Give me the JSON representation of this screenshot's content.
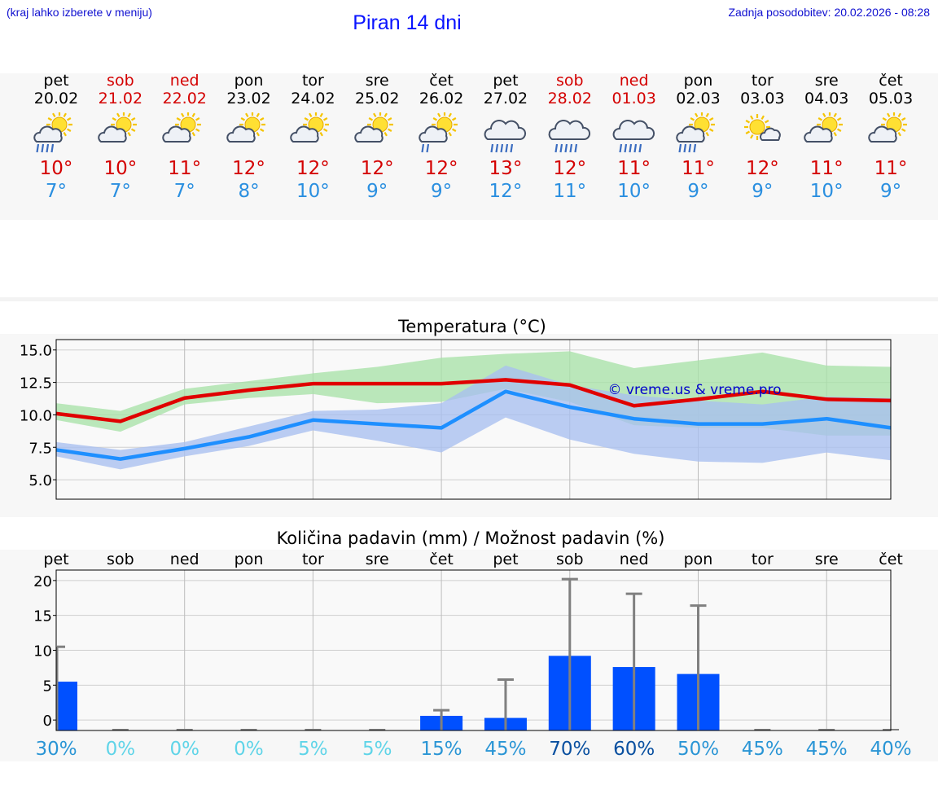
{
  "header": {
    "hint": "(kraj lahko izberete v meniju)",
    "title": "Piran 14 dni",
    "updated": "Zadnja posodobitev: 20.02.2026 - 08:28"
  },
  "colors": {
    "max_temp": "#e00000",
    "min_temp": "#1e8fff",
    "max_band": "#a8e2a8",
    "min_band": "#a8bff0",
    "bar": "#0050ff",
    "error_bar": "#808080",
    "watermark": "#0000cc"
  },
  "days": [
    {
      "name": "pet",
      "date": "20.02",
      "weekend": false,
      "icon": "sun-cloud-rain-icon",
      "tmax": "10°",
      "tmin": "7°"
    },
    {
      "name": "sob",
      "date": "21.02",
      "weekend": true,
      "icon": "sun-cloud-icon",
      "tmax": "10°",
      "tmin": "7°"
    },
    {
      "name": "ned",
      "date": "22.02",
      "weekend": true,
      "icon": "sun-cloud-icon",
      "tmax": "11°",
      "tmin": "7°"
    },
    {
      "name": "pon",
      "date": "23.02",
      "weekend": false,
      "icon": "sun-cloud-icon",
      "tmax": "12°",
      "tmin": "8°"
    },
    {
      "name": "tor",
      "date": "24.02",
      "weekend": false,
      "icon": "sun-cloud-icon",
      "tmax": "12°",
      "tmin": "10°"
    },
    {
      "name": "sre",
      "date": "25.02",
      "weekend": false,
      "icon": "sun-cloud-icon",
      "tmax": "12°",
      "tmin": "9°"
    },
    {
      "name": "čet",
      "date": "26.02",
      "weekend": false,
      "icon": "sun-cloud-light-rain-icon",
      "tmax": "12°",
      "tmin": "9°"
    },
    {
      "name": "pet",
      "date": "27.02",
      "weekend": false,
      "icon": "cloud-rain-icon",
      "tmax": "13°",
      "tmin": "12°"
    },
    {
      "name": "sob",
      "date": "28.02",
      "weekend": true,
      "icon": "cloud-rain-icon",
      "tmax": "12°",
      "tmin": "11°"
    },
    {
      "name": "ned",
      "date": "01.03",
      "weekend": true,
      "icon": "cloud-rain-icon",
      "tmax": "11°",
      "tmin": "10°"
    },
    {
      "name": "pon",
      "date": "02.03",
      "weekend": false,
      "icon": "sun-cloud-rain-icon",
      "tmax": "11°",
      "tmin": "9°"
    },
    {
      "name": "tor",
      "date": "03.03",
      "weekend": false,
      "icon": "sun-small-cloud-icon",
      "tmax": "12°",
      "tmin": "9°"
    },
    {
      "name": "sre",
      "date": "04.03",
      "weekend": false,
      "icon": "sun-cloud-icon",
      "tmax": "11°",
      "tmin": "10°"
    },
    {
      "name": "čet",
      "date": "05.03",
      "weekend": false,
      "icon": "sun-cloud-icon",
      "tmax": "11°",
      "tmin": "9°"
    }
  ],
  "chart_data": [
    {
      "type": "line",
      "title": "Temperatura (°C)",
      "xlabel": "",
      "ylabel": "",
      "x": [
        1,
        2,
        3,
        4,
        5,
        6,
        7,
        8,
        9,
        10,
        11,
        12,
        13,
        14
      ],
      "ylim": [
        3.5,
        15.8
      ],
      "yticks": [
        "5.0",
        "7.5",
        "10.0",
        "12.5",
        "15.0"
      ],
      "ytick_values": [
        5.0,
        7.5,
        10.0,
        12.5,
        15.0
      ],
      "watermark": "© vreme.us & vreme.pro",
      "grid": true,
      "series": [
        {
          "name": "max",
          "color": "#e00000",
          "values": [
            10.1,
            9.5,
            11.3,
            11.9,
            12.4,
            12.4,
            12.4,
            12.7,
            12.3,
            10.7,
            11.2,
            11.8,
            11.2,
            11.1
          ],
          "band_low": [
            9.6,
            8.7,
            10.8,
            11.3,
            11.6,
            10.9,
            11.0,
            12.0,
            11.0,
            9.2,
            9.0,
            9.0,
            8.4,
            8.4
          ],
          "band_high": [
            10.9,
            10.3,
            12.0,
            12.6,
            13.2,
            13.7,
            14.4,
            14.7,
            14.9,
            13.6,
            14.2,
            14.8,
            13.8,
            13.7
          ]
        },
        {
          "name": "min",
          "color": "#1e8fff",
          "values": [
            7.3,
            6.6,
            7.4,
            8.3,
            9.6,
            9.3,
            9.0,
            11.8,
            10.6,
            9.7,
            9.3,
            9.3,
            9.7,
            9.0
          ],
          "band_low": [
            6.8,
            5.8,
            6.8,
            7.6,
            8.8,
            8.0,
            7.1,
            9.8,
            8.1,
            7.0,
            6.4,
            6.3,
            7.1,
            6.5
          ],
          "band_high": [
            7.9,
            7.3,
            7.9,
            9.1,
            10.3,
            10.4,
            10.9,
            13.8,
            12.3,
            11.5,
            11.1,
            10.8,
            11.4,
            11.3
          ]
        }
      ]
    },
    {
      "type": "bar",
      "title": "Količina padavin (mm) / Možnost padavin (%)",
      "categories": [
        "pet",
        "sob",
        "ned",
        "pon",
        "tor",
        "sre",
        "čet",
        "pet",
        "sob",
        "ned",
        "pon",
        "tor",
        "sre",
        "čet"
      ],
      "ylim": [
        -1.5,
        21.5
      ],
      "yticks": [
        "0",
        "5",
        "10",
        "15",
        "20"
      ],
      "ytick_values": [
        0,
        5,
        10,
        15,
        20
      ],
      "values": [
        5.5,
        0,
        0,
        0,
        0,
        0,
        0.6,
        0.3,
        9.2,
        7.6,
        6.6,
        0,
        0,
        0
      ],
      "error_max": [
        10.5,
        0,
        0,
        0,
        0,
        0,
        1.4,
        5.8,
        20.2,
        18.1,
        16.4,
        0,
        0,
        0
      ],
      "probability": [
        "30%",
        "0%",
        "0%",
        "0%",
        "5%",
        "5%",
        "15%",
        "45%",
        "70%",
        "60%",
        "50%",
        "45%",
        "45%",
        "40%"
      ],
      "probability_colors": [
        "#2a95d5",
        "#5fd4e8",
        "#5fd4e8",
        "#5fd4e8",
        "#5fd4e8",
        "#5fd4e8",
        "#2a95d5",
        "#2a95d5",
        "#0a50a0",
        "#0a50a0",
        "#2a95d5",
        "#2a95d5",
        "#2a95d5",
        "#2a95d5"
      ]
    }
  ]
}
